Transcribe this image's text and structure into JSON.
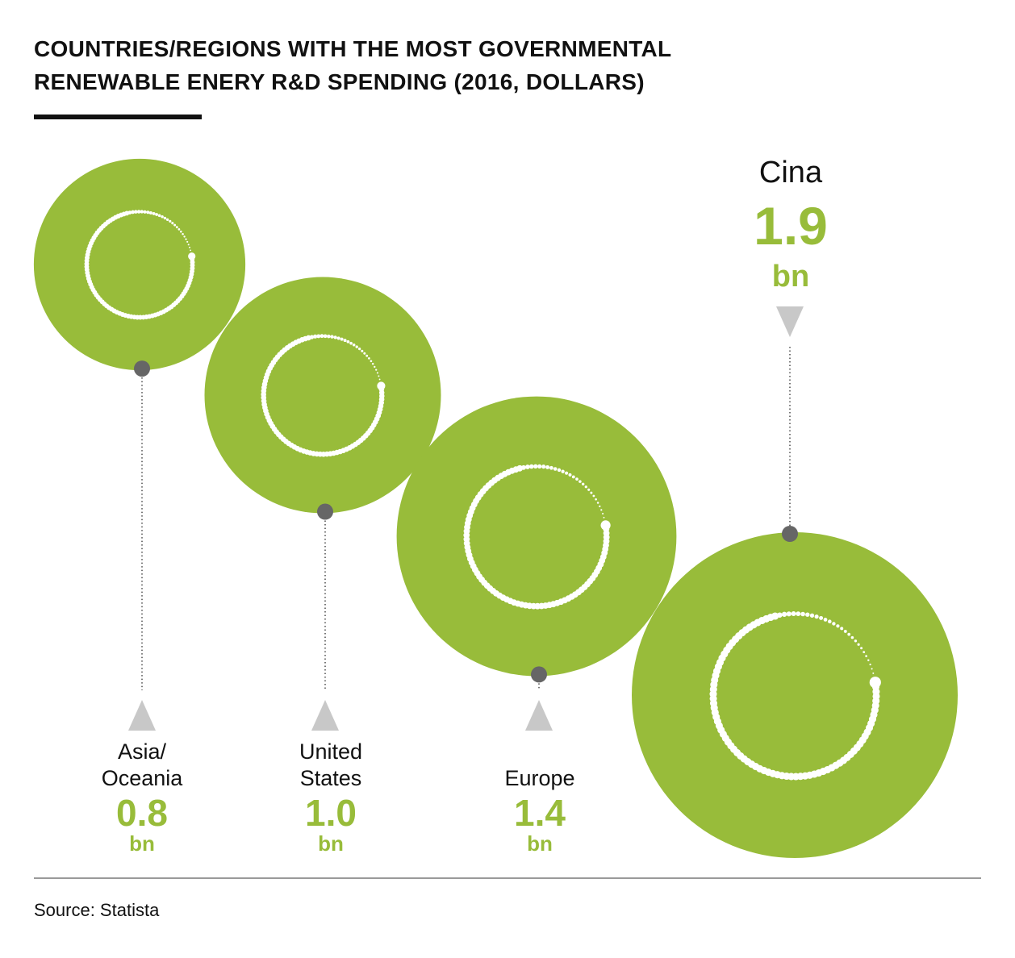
{
  "title": {
    "line1": "COUNTRIES/REGIONS WITH THE MOST GOVERNMENTAL",
    "line2": "RENEWABLE ENERY R&D SPENDING (2016, DOLLARS)"
  },
  "chart_data": {
    "type": "bubble",
    "title": "COUNTRIES/REGIONS WITH THE MOST GOVERNMENTAL RENEWABLE ENERY R&D SPENDING (2016, DOLLARS)",
    "unit": "bn",
    "categories": [
      "Asia/ Oceania",
      "United States",
      "Europe",
      "Cina"
    ],
    "values": [
      0.8,
      1.0,
      1.4,
      1.9
    ],
    "items": [
      {
        "label_lines": [
          "Asia/",
          "Oceania"
        ],
        "value": 0.8,
        "value_text": "0.8",
        "unit": "bn"
      },
      {
        "label_lines": [
          "United",
          "States"
        ],
        "value": 1.0,
        "value_text": "1.0",
        "unit": "bn"
      },
      {
        "label_lines": [
          "Europe"
        ],
        "value": 1.4,
        "value_text": "1.4",
        "unit": "bn"
      },
      {
        "label_lines": [
          "Cina"
        ],
        "value": 1.9,
        "value_text": "1.9",
        "unit": "bn"
      }
    ]
  },
  "colors": {
    "bubble": "#98bc3a",
    "value_text": "#98bc3a",
    "leader_dot": "#666666",
    "arrow": "#c8c8c8",
    "ring": "#ffffff"
  },
  "source": "Source: Statista"
}
